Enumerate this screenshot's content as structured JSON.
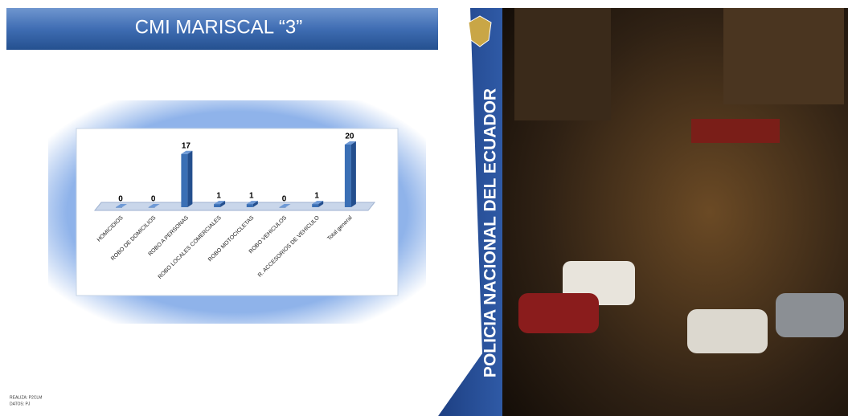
{
  "header": {
    "title": "CMI MARISCAL “3”"
  },
  "side_text": "POLICIA NACIONAL DEL ECUADOR",
  "footer": [
    "REALIZA: P2CLM",
    "DATOS: PJ"
  ],
  "chart_data": {
    "type": "bar",
    "categories": [
      "HOMICIDIOS",
      "ROBO DE DOMICILIOS",
      "ROBO A PERSONAS",
      "ROBO LOCALES COMERCIALES",
      "ROBO MOTOCICLETAS",
      "ROBO VEHICULOS",
      "R. ACCESORIOS DE VEHICULO",
      "Total general"
    ],
    "values": [
      0,
      0,
      17,
      1,
      1,
      0,
      1,
      20
    ],
    "color": "#3a6fb5"
  }
}
